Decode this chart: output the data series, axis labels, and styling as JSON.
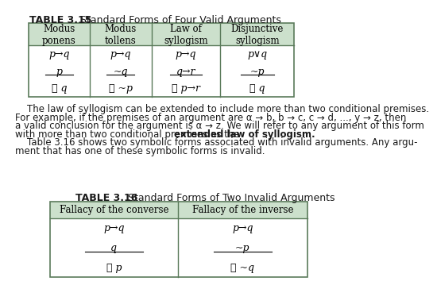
{
  "bg_color": "#ffffff",
  "table315_title_bold": "TABLE 3.15",
  "table315_title_normal": "  Standard Forms of Four Valid Arguments",
  "table315_headers": [
    "Modus\nponens",
    "Modus\ntollens",
    "Law of\nsyllogism",
    "Disjunctive\nsyllogism"
  ],
  "table315_header_bg": "#cce0cc",
  "table315_border": "#5a7a5a",
  "table315_rows": [
    [
      "p→q",
      "p→q",
      "p→q",
      "p∨q"
    ],
    [
      "p",
      "~q",
      "q→r",
      "~p"
    ],
    [
      "∴ q",
      "∴ ~p",
      "∴ p→r",
      "∴ q"
    ]
  ],
  "table315_underline_row": 1,
  "table316_title_bold": "TABLE 3.16",
  "table316_title_normal": "  Standard Forms of Two Invalid Arguments",
  "table316_headers": [
    "Fallacy of the converse",
    "Fallacy of the inverse"
  ],
  "table316_header_bg": "#cce0cc",
  "table316_border": "#5a7a5a",
  "table316_rows": [
    [
      "p→q",
      "p→q"
    ],
    [
      "q",
      "~p"
    ],
    [
      "∴ p",
      "∴ ~q"
    ]
  ],
  "table316_underline_row": 1,
  "para_line0": "    The law of syllogism can be extended to include more than two conditional premises.",
  "para_line1": "For example, if the premises of an argument are α → b, b → c, c → d, ..., y → z, then",
  "para_line2": "a valid conclusion for the argument is α → z. We will refer to any argument of this form",
  "para_line3a": "with more than two conditional premises as the ",
  "para_line3b": "extended law of syllogism.",
  "para_line4": "    Table 3.16 shows two symbolic forms associated with invalid arguments. Any argu-",
  "para_line5": "ment that has one of these symbolic forms is invalid.",
  "text_color": "#1a1a1a",
  "title_color": "#1a1a1a"
}
